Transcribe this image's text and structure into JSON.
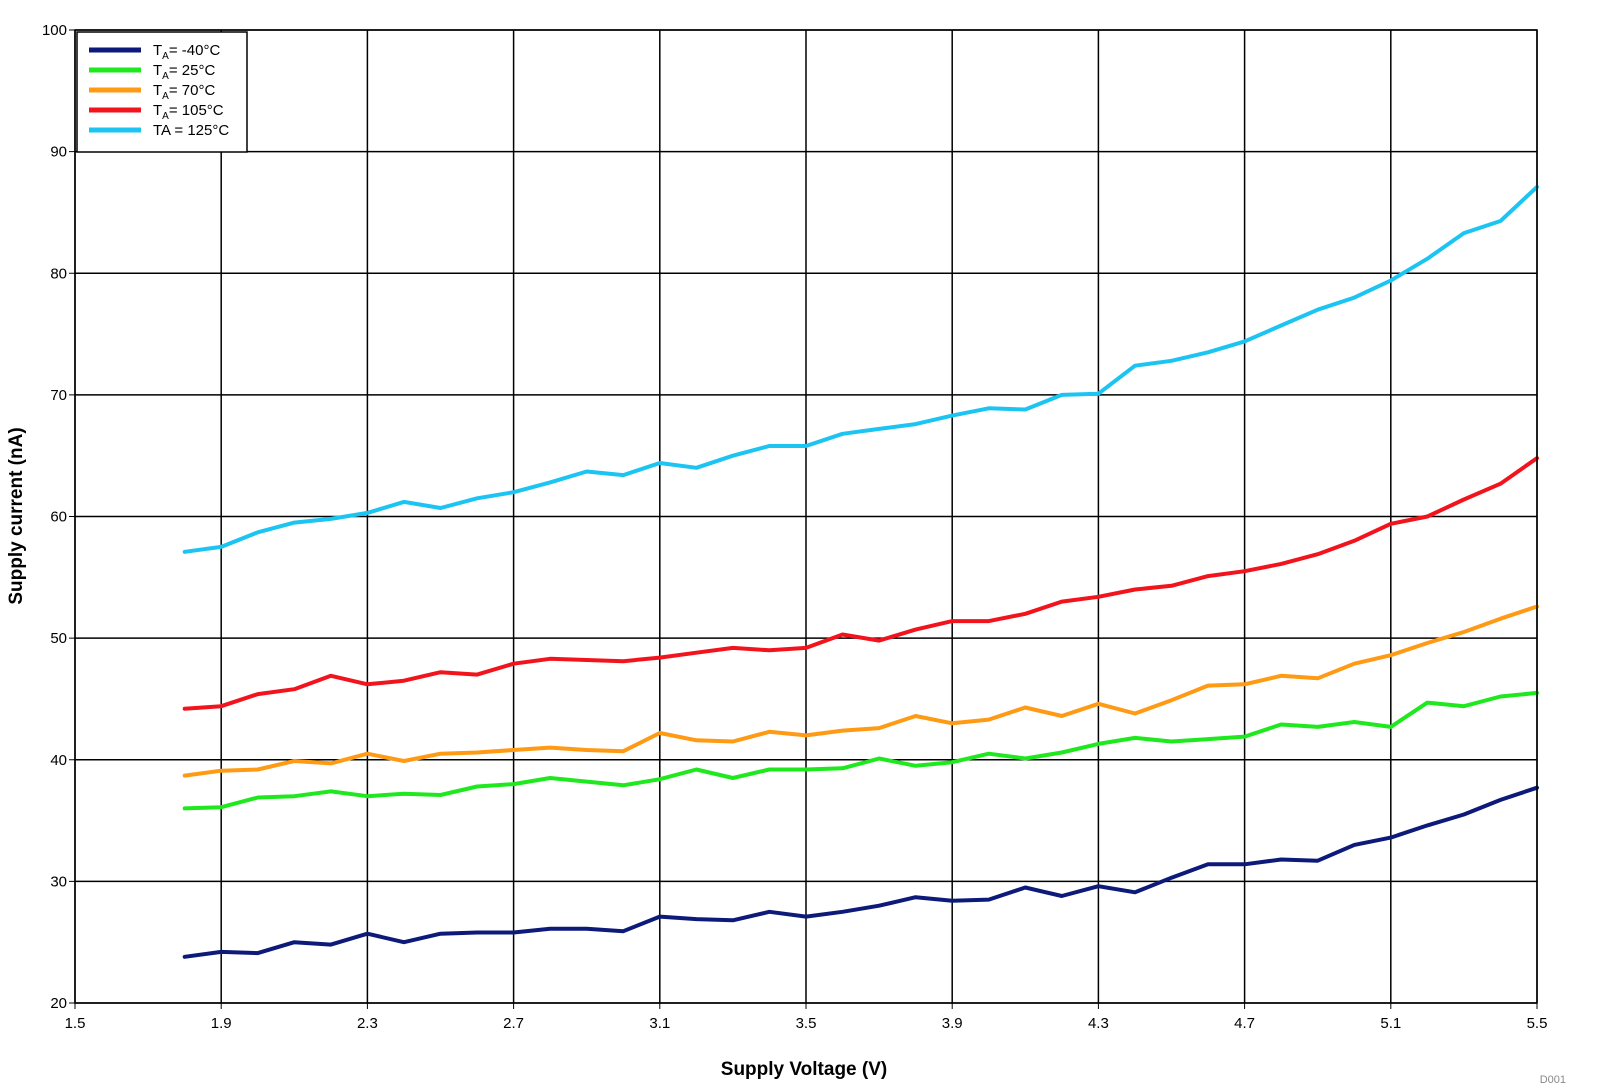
{
  "chart_data": {
    "type": "line",
    "title": "",
    "xlabel": "Supply Voltage (V)",
    "ylabel": "Supply current (nA)",
    "xlim": [
      1.5,
      5.5
    ],
    "ylim": [
      20,
      100
    ],
    "xticks": [
      "1.5",
      "1.9",
      "2.3",
      "2.7",
      "3.1",
      "3.5",
      "3.9",
      "4.3",
      "4.7",
      "5.1",
      "5.5"
    ],
    "yticks": [
      "20",
      "30",
      "40",
      "50",
      "60",
      "70",
      "80",
      "90",
      "100"
    ],
    "grid": true,
    "legend_position": "top-left",
    "x": [
      1.8,
      1.9,
      2.0,
      2.1,
      2.2,
      2.3,
      2.4,
      2.5,
      2.6,
      2.7,
      2.8,
      2.9,
      3.0,
      3.1,
      3.2,
      3.3,
      3.4,
      3.5,
      3.6,
      3.7,
      3.8,
      3.9,
      4.0,
      4.1,
      4.2,
      4.3,
      4.4,
      4.5,
      4.6,
      4.7,
      4.8,
      4.9,
      5.0,
      5.1,
      5.2,
      5.3,
      5.4,
      5.5
    ],
    "series": [
      {
        "name": "TA= -40°C",
        "legend_main": "T",
        "legend_sub": "A",
        "legend_rest": "= -40°C",
        "color": "#0d1a7a",
        "values": [
          23.8,
          24.2,
          24.1,
          25.0,
          24.8,
          25.7,
          25.0,
          25.7,
          25.8,
          25.8,
          26.1,
          26.1,
          25.9,
          27.1,
          26.9,
          26.8,
          27.5,
          27.1,
          27.5,
          28.0,
          28.7,
          28.4,
          28.5,
          29.5,
          28.8,
          29.6,
          29.1,
          30.3,
          31.4,
          31.4,
          31.8,
          31.7,
          33.0,
          33.6,
          34.6,
          35.5,
          36.7,
          37.7
        ]
      },
      {
        "name": "TA= 25°C",
        "legend_main": "T",
        "legend_sub": "A",
        "legend_rest": "= 25°C",
        "color": "#1fe81f",
        "values": [
          36.0,
          36.1,
          36.9,
          37.0,
          37.4,
          37.0,
          37.2,
          37.1,
          37.8,
          38.0,
          38.5,
          38.2,
          37.9,
          38.4,
          39.2,
          38.5,
          39.2,
          39.2,
          39.3,
          40.1,
          39.5,
          39.8,
          40.5,
          40.1,
          40.6,
          41.3,
          41.8,
          41.5,
          41.7,
          41.9,
          42.9,
          42.7,
          43.1,
          42.7,
          44.7,
          44.4,
          45.2,
          45.5
        ]
      },
      {
        "name": "TA= 70°C",
        "legend_main": "T",
        "legend_sub": "A",
        "legend_rest": "= 70°C",
        "color": "#ff9a14",
        "values": [
          38.7,
          39.1,
          39.2,
          39.9,
          39.7,
          40.5,
          39.9,
          40.5,
          40.6,
          40.8,
          41.0,
          40.8,
          40.7,
          42.2,
          41.6,
          41.5,
          42.3,
          42.0,
          42.4,
          42.6,
          43.6,
          43.0,
          43.3,
          44.3,
          43.6,
          44.6,
          43.8,
          44.9,
          46.1,
          46.2,
          46.9,
          46.7,
          47.9,
          48.6,
          49.6,
          50.5,
          51.6,
          52.6
        ]
      },
      {
        "name": "TA= 105°C",
        "legend_main": "T",
        "legend_sub": "A",
        "legend_rest": "= 105°C",
        "color": "#f2141c",
        "values": [
          44.2,
          44.4,
          45.4,
          45.8,
          46.9,
          46.2,
          46.5,
          47.2,
          47.0,
          47.9,
          48.3,
          48.2,
          48.1,
          48.4,
          48.8,
          49.2,
          49.0,
          49.2,
          50.3,
          49.8,
          50.7,
          51.4,
          51.4,
          52.0,
          53.0,
          53.4,
          54.0,
          54.3,
          55.1,
          55.5,
          56.1,
          56.9,
          58.0,
          59.4,
          60.0,
          61.4,
          62.7,
          64.8
        ]
      },
      {
        "name": "TA = 125°C",
        "legend_main": "TA = 125°C",
        "legend_sub": "",
        "legend_rest": "",
        "color": "#1cc4f2",
        "values": [
          57.1,
          57.5,
          58.7,
          59.5,
          59.8,
          60.3,
          61.2,
          60.7,
          61.5,
          62.0,
          62.8,
          63.7,
          63.4,
          64.4,
          64.0,
          65.0,
          65.8,
          65.8,
          66.8,
          67.2,
          67.6,
          68.3,
          68.9,
          68.8,
          70.0,
          70.1,
          72.4,
          72.8,
          73.5,
          74.4,
          75.7,
          77.0,
          78.0,
          79.4,
          81.2,
          83.3,
          84.3,
          87.1
        ]
      }
    ]
  },
  "watermark": "D001"
}
